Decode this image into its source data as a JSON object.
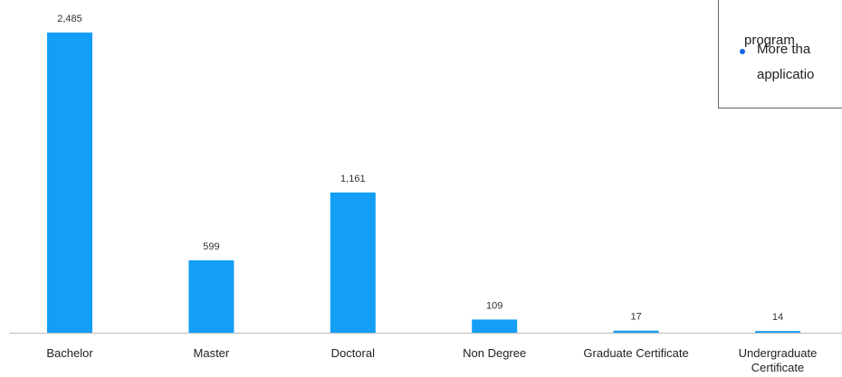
{
  "chart_data": {
    "type": "bar",
    "categories": [
      "Bachelor",
      "Master",
      "Doctoral",
      "Non Degree",
      "Graduate Certificate",
      "Undergraduate Certificate"
    ],
    "values": [
      2485,
      599,
      1161,
      109,
      17,
      14
    ],
    "value_labels": [
      "2,485",
      "599",
      "1,161",
      "109",
      "17",
      "14"
    ],
    "color": "#149ef5"
  },
  "note_box": {
    "lines": [
      "program",
      "More tha",
      "applicatio"
    ]
  }
}
